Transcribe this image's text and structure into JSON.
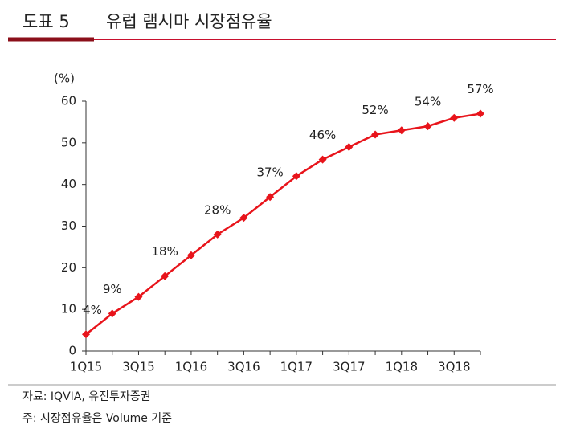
{
  "header": {
    "label": "도표 5",
    "title": "유럽 램시마 시장점유율"
  },
  "chart_data": {
    "type": "line",
    "y_label": "(%)",
    "categories": [
      "1Q15",
      null,
      "3Q15",
      null,
      "1Q16",
      null,
      "3Q16",
      null,
      "1Q17",
      null,
      "3Q17",
      null,
      "1Q18",
      null,
      "3Q18",
      null
    ],
    "series": [
      {
        "name": "램시마",
        "color": "#e8141b",
        "values": [
          4,
          9,
          13,
          18,
          23,
          28,
          32,
          37,
          42,
          46,
          49,
          52,
          53,
          54,
          56,
          57
        ],
        "value_labels": [
          "4%",
          "9%",
          null,
          "18%",
          null,
          "28%",
          null,
          "37%",
          null,
          "46%",
          null,
          "52%",
          null,
          "54%",
          null,
          "57%"
        ]
      }
    ],
    "ylim": [
      0,
      60
    ],
    "yticks": [
      0,
      10,
      20,
      30,
      40,
      50,
      60
    ],
    "grid": false
  },
  "footer": {
    "source": "자료: IQVIA, 유진투자증권",
    "note": "주: 시장점유율은 Volume 기준"
  }
}
